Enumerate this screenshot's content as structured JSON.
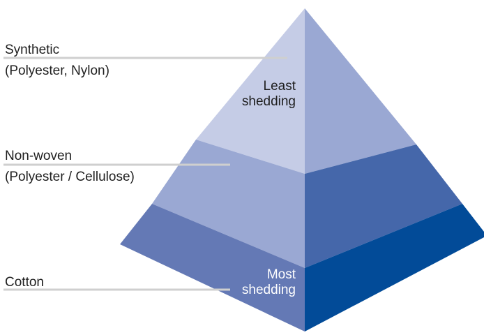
{
  "tiers": [
    {
      "label_line1": "Synthetic",
      "label_line2": "(Polyester, Nylon)"
    },
    {
      "label_line1": "Non-woven",
      "label_line2": "(Polyester / Cellulose)"
    },
    {
      "label_line1": "Cotton",
      "label_line2": ""
    }
  ],
  "top_text": {
    "line1": "Least",
    "line2": "shedding"
  },
  "bottom_text": {
    "line1": "Most",
    "line2": "shedding"
  },
  "colors": {
    "top_left": "#c5cce6",
    "top_right": "#9aa8d3",
    "mid_left": "#9aa8d3",
    "mid_right": "#4567aa",
    "bottom_left": "#6479b5",
    "bottom_right": "#024b98",
    "leader_line": "#cfcfcf",
    "label_text": "#1e1e1e",
    "top_inner_text": "#1e1e1e",
    "bottom_inner_text": "#ffffff"
  }
}
